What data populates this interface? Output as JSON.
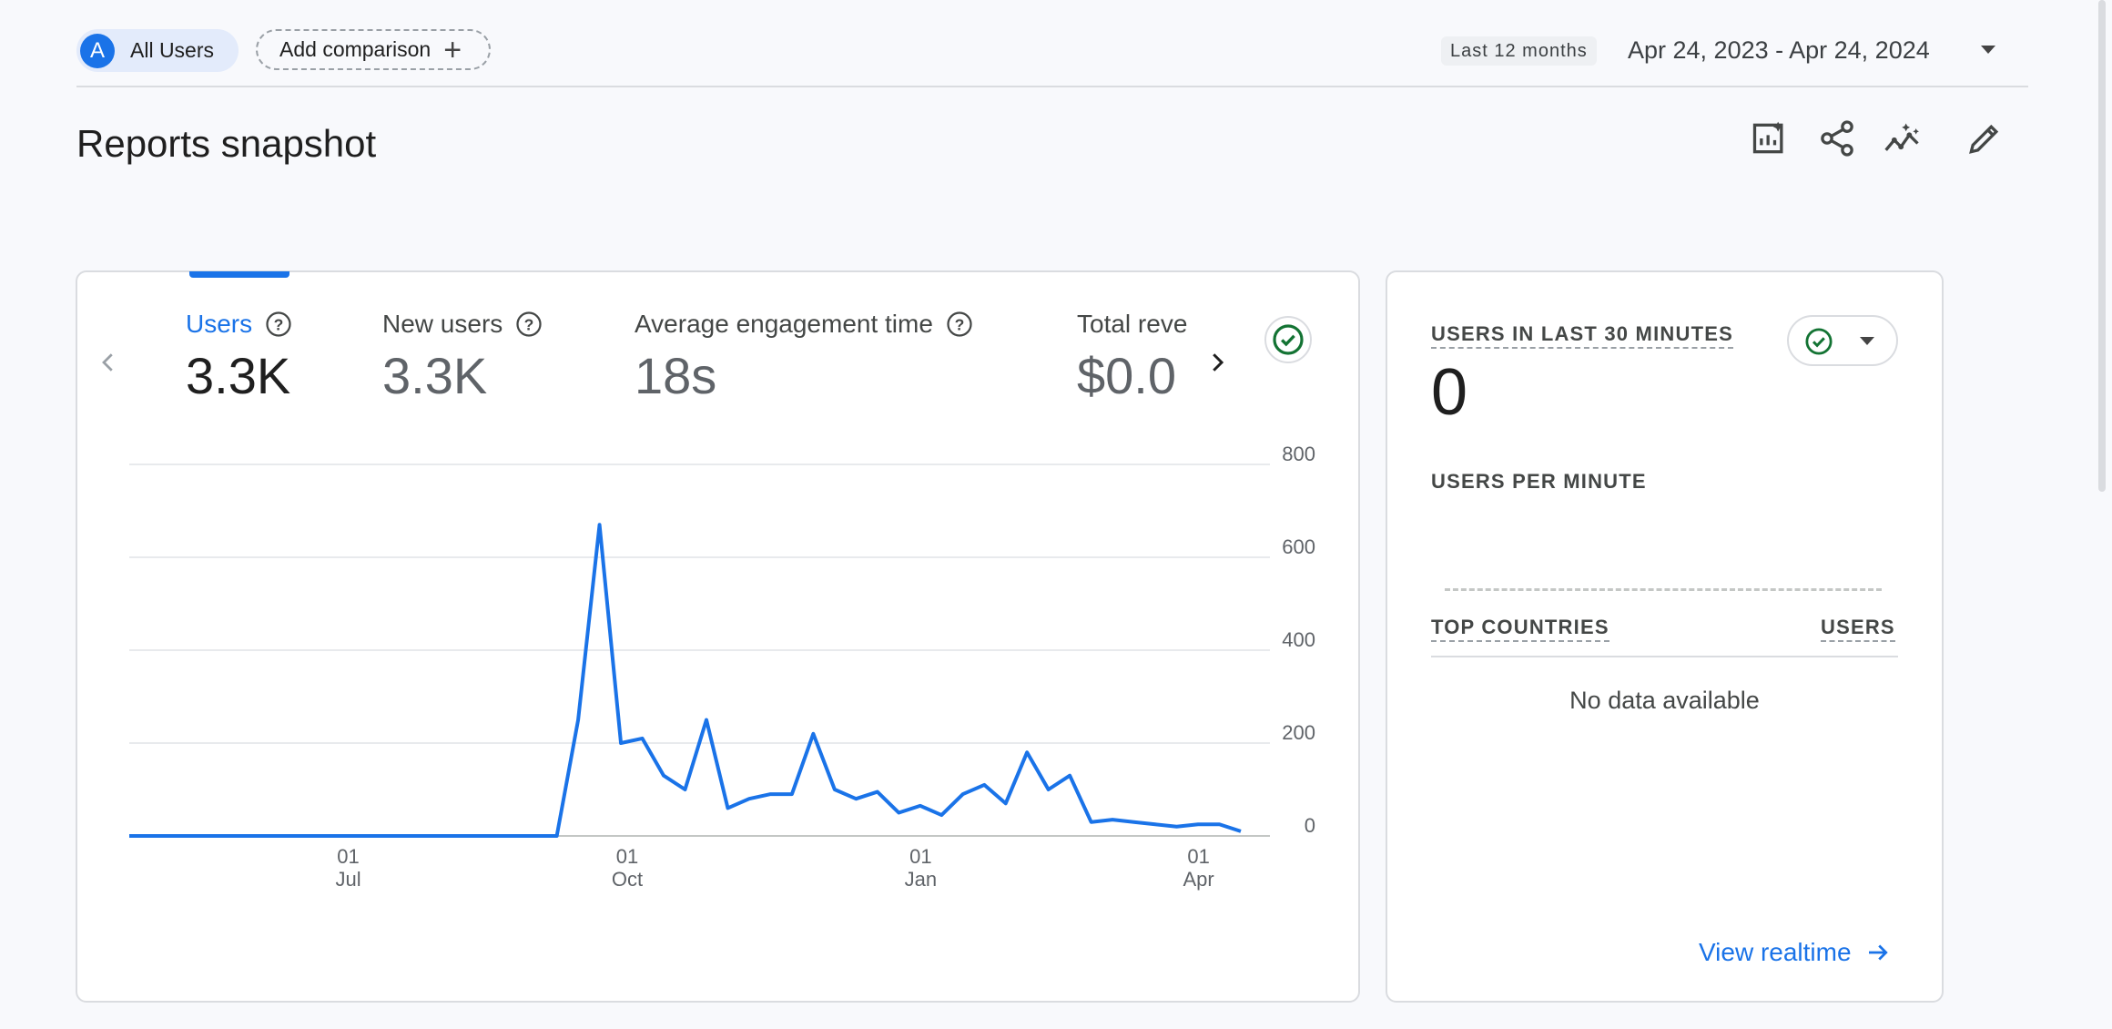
{
  "filters": {
    "segment_avatar": "A",
    "segment_label": "All Users",
    "add_comparison_label": "Add comparison"
  },
  "date_range": {
    "preset": "Last 12 months",
    "text": "Apr 24, 2023 - Apr 24, 2024"
  },
  "page": {
    "title": "Reports snapshot",
    "toolbar_icons": [
      "customize-report-icon",
      "share-icon",
      "insights-icon",
      "edit-icon"
    ]
  },
  "main_card": {
    "metrics": [
      {
        "label": "Users",
        "value": "3.3K",
        "active": true
      },
      {
        "label": "New users",
        "value": "3.3K",
        "active": false
      },
      {
        "label": "Average engagement time",
        "value": "18s",
        "active": false
      },
      {
        "label": "Total reve",
        "value": "$0.0",
        "active": false
      }
    ]
  },
  "chart_data": {
    "type": "line",
    "series": [
      {
        "values": [
          0,
          0,
          0,
          0,
          0,
          0,
          0,
          0,
          0,
          0,
          0,
          0,
          0,
          0,
          0,
          0,
          0,
          0,
          0,
          0,
          0,
          250,
          670,
          200,
          210,
          130,
          100,
          250,
          60,
          80,
          90,
          90,
          220,
          100,
          80,
          95,
          50,
          65,
          45,
          90,
          110,
          70,
          180,
          100,
          130,
          30,
          35,
          30,
          25,
          20,
          25,
          25,
          10
        ]
      }
    ],
    "y_ticks": [
      "800",
      "600",
      "400",
      "200",
      "0"
    ],
    "ylim": [
      0,
      800
    ],
    "x_ticks": [
      {
        "day": "01",
        "month": "Jul"
      },
      {
        "day": "01",
        "month": "Oct"
      },
      {
        "day": "01",
        "month": "Jan"
      },
      {
        "day": "01",
        "month": "Apr"
      }
    ],
    "color": "#1a73e8",
    "grid": true
  },
  "realtime_card": {
    "heading": "USERS IN LAST 30 MINUTES",
    "value": "0",
    "per_minute_label": "USERS PER MINUTE",
    "top_countries_label": "TOP COUNTRIES",
    "users_label": "USERS",
    "empty_text": "No data available",
    "link_label": "View realtime"
  },
  "colors": {
    "accent": "#1a73e8",
    "success": "#137333"
  }
}
